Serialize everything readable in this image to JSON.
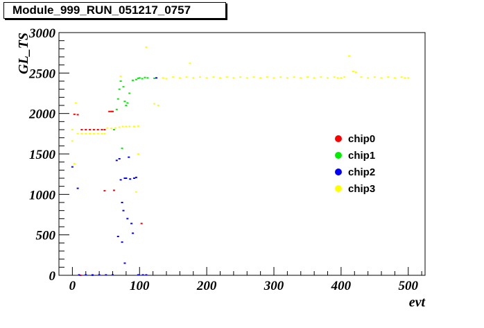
{
  "window": {
    "title": "Module_999_RUN_051217_0757"
  },
  "chart_data": {
    "type": "scatter",
    "title": "Module_999_RUN_051217_0757",
    "xlabel": "evt",
    "ylabel": "GL_TS",
    "xlim": [
      -20,
      525
    ],
    "ylim": [
      0,
      3000
    ],
    "x_ticks": [
      0,
      100,
      200,
      300,
      400,
      500
    ],
    "y_ticks": [
      0,
      500,
      1000,
      1500,
      2000,
      2500,
      3000
    ],
    "grid": false,
    "legend_position": "right",
    "series": [
      {
        "name": "chip0",
        "color": "#ff0000",
        "points": [
          [
            3,
            1990
          ],
          [
            8,
            1985
          ],
          [
            14,
            1800
          ],
          [
            20,
            1800
          ],
          [
            26,
            1800
          ],
          [
            32,
            1800
          ],
          [
            38,
            1800
          ],
          [
            44,
            1800
          ],
          [
            48,
            1800
          ],
          [
            48,
            1045
          ],
          [
            55,
            2025
          ],
          [
            58,
            2025
          ],
          [
            60,
            2025
          ],
          [
            62,
            1050
          ],
          [
            103,
            640
          ],
          [
            12,
            0
          ],
          [
            30,
            0
          ]
        ]
      },
      {
        "name": "chip1",
        "color": "#00ee00",
        "points": [
          [
            62,
            1800
          ],
          [
            66,
            2050
          ],
          [
            68,
            2180
          ],
          [
            70,
            2300
          ],
          [
            72,
            2400
          ],
          [
            74,
            1570
          ],
          [
            76,
            2330
          ],
          [
            78,
            2150
          ],
          [
            80,
            2100
          ],
          [
            82,
            2130
          ],
          [
            85,
            2250
          ],
          [
            90,
            2410
          ],
          [
            95,
            2420
          ],
          [
            98,
            2435
          ],
          [
            100,
            2440
          ],
          [
            104,
            2430
          ],
          [
            108,
            2445
          ],
          [
            112,
            2440
          ],
          [
            122,
            2435
          ]
        ]
      },
      {
        "name": "chip2",
        "color": "#0000ff",
        "points": [
          [
            0,
            1340
          ],
          [
            8,
            1075
          ],
          [
            10,
            5
          ],
          [
            20,
            5
          ],
          [
            30,
            5
          ],
          [
            40,
            5
          ],
          [
            50,
            5
          ],
          [
            60,
            5
          ],
          [
            66,
            1420
          ],
          [
            68,
            480
          ],
          [
            70,
            1440
          ],
          [
            72,
            1180
          ],
          [
            74,
            900
          ],
          [
            74,
            410
          ],
          [
            76,
            800
          ],
          [
            78,
            150
          ],
          [
            78,
            1200
          ],
          [
            80,
            1200
          ],
          [
            82,
            700
          ],
          [
            84,
            1460
          ],
          [
            86,
            1190
          ],
          [
            88,
            640
          ],
          [
            90,
            520
          ],
          [
            92,
            1200
          ],
          [
            95,
            1210
          ],
          [
            98,
            5
          ],
          [
            105,
            5
          ],
          [
            110,
            5
          ],
          [
            125,
            2440
          ]
        ]
      },
      {
        "name": "chip3",
        "color": "#ffff00",
        "points": [
          [
            0,
            1800
          ],
          [
            0,
            1660
          ],
          [
            3,
            1380
          ],
          [
            5,
            2130
          ],
          [
            8,
            1750
          ],
          [
            14,
            1750
          ],
          [
            20,
            1750
          ],
          [
            26,
            1750
          ],
          [
            32,
            1750
          ],
          [
            38,
            1750
          ],
          [
            44,
            1750
          ],
          [
            48,
            1750
          ],
          [
            52,
            1820
          ],
          [
            58,
            1815
          ],
          [
            64,
            1820
          ],
          [
            70,
            1830
          ],
          [
            75,
            1840
          ],
          [
            80,
            1840
          ],
          [
            85,
            1840
          ],
          [
            92,
            1840
          ],
          [
            98,
            1845
          ],
          [
            95,
            1030
          ],
          [
            98,
            1500
          ],
          [
            72,
            2460
          ],
          [
            110,
            2820
          ],
          [
            122,
            2120
          ],
          [
            128,
            2100
          ],
          [
            135,
            2440
          ],
          [
            140,
            2430
          ],
          [
            150,
            2450
          ],
          [
            160,
            2440
          ],
          [
            170,
            2450
          ],
          [
            175,
            2620
          ],
          [
            180,
            2440
          ],
          [
            190,
            2450
          ],
          [
            200,
            2440
          ],
          [
            210,
            2450
          ],
          [
            220,
            2440
          ],
          [
            230,
            2450
          ],
          [
            240,
            2440
          ],
          [
            250,
            2450
          ],
          [
            260,
            2440
          ],
          [
            270,
            2450
          ],
          [
            280,
            2440
          ],
          [
            290,
            2450
          ],
          [
            300,
            2440
          ],
          [
            310,
            2450
          ],
          [
            320,
            2440
          ],
          [
            330,
            2450
          ],
          [
            340,
            2440
          ],
          [
            350,
            2450
          ],
          [
            360,
            2440
          ],
          [
            370,
            2450
          ],
          [
            380,
            2440
          ],
          [
            390,
            2450
          ],
          [
            395,
            2440
          ],
          [
            400,
            2440
          ],
          [
            405,
            2450
          ],
          [
            412,
            2710
          ],
          [
            418,
            2520
          ],
          [
            422,
            2510
          ],
          [
            430,
            2450
          ],
          [
            440,
            2440
          ],
          [
            450,
            2450
          ],
          [
            460,
            2440
          ],
          [
            470,
            2450
          ],
          [
            480,
            2440
          ],
          [
            490,
            2450
          ],
          [
            495,
            2440
          ],
          [
            500,
            2440
          ]
        ]
      }
    ]
  }
}
